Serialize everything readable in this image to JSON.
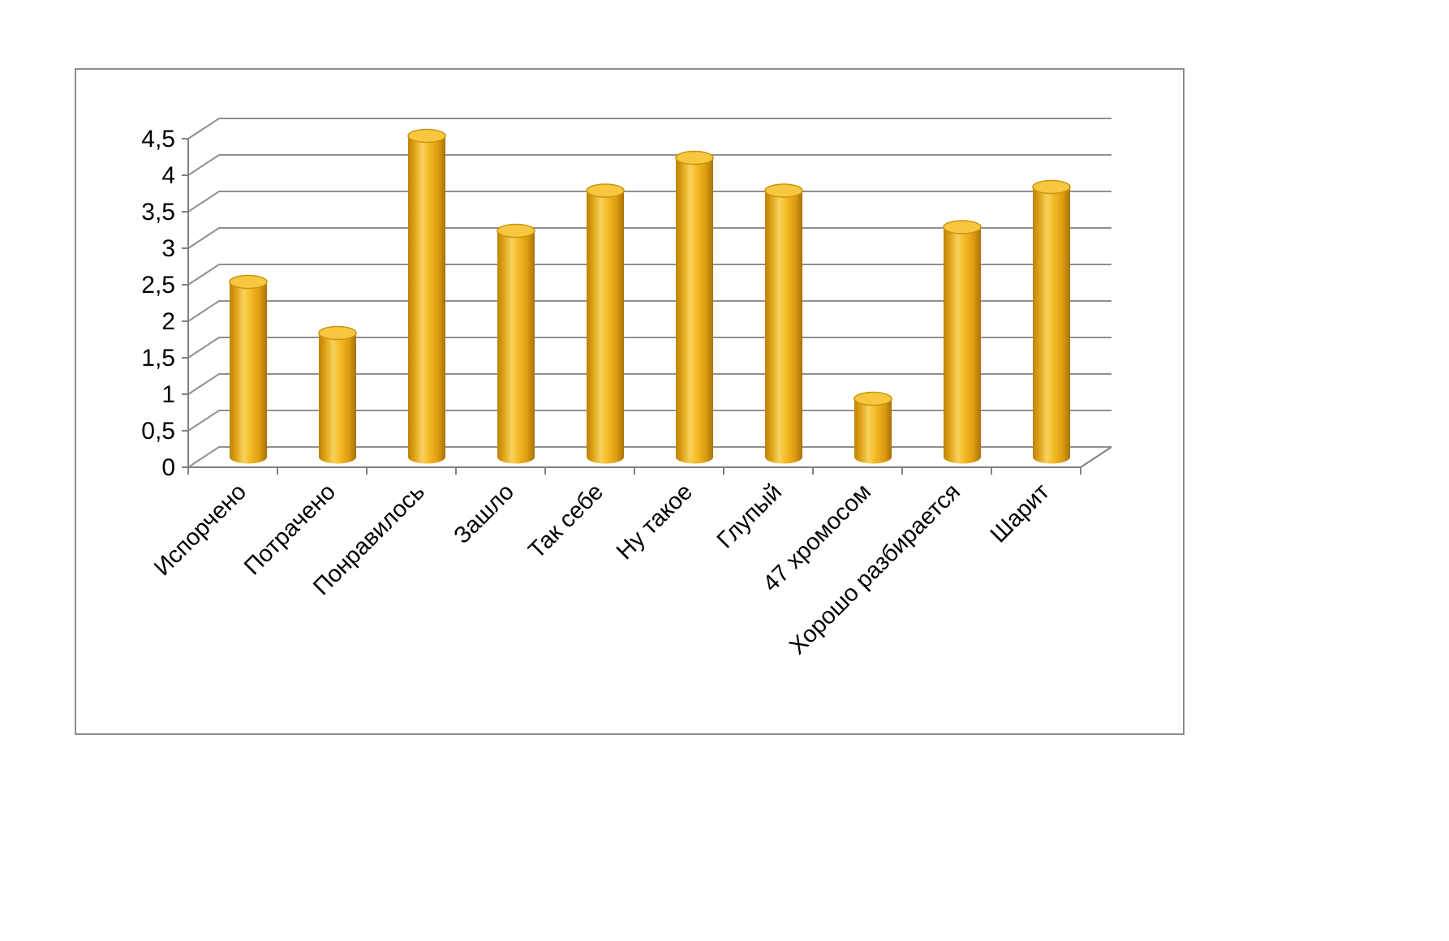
{
  "chart": {
    "frame_border_color": "#8c8c8c",
    "background": "#ffffff"
  },
  "chart_data": {
    "type": "bar",
    "subtype": "3d-cylinder",
    "title": "",
    "xlabel": "",
    "ylabel": "",
    "legend": "none",
    "grid": true,
    "categories": [
      "Испорчено",
      "Потрачено",
      "Понравилось",
      "Зашло",
      "Так себе",
      "Ну такое",
      "Глупый",
      "47 хромосом",
      "Хорошо разбирается",
      "Шарит"
    ],
    "values": [
      2.4,
      1.7,
      4.4,
      3.1,
      3.65,
      4.1,
      3.65,
      0.8,
      3.15,
      3.7
    ],
    "ylim": [
      0,
      4.5
    ],
    "ytick_step": 0.5,
    "ytick_labels": [
      "0",
      "0,5",
      "1",
      "1,5",
      "2",
      "2,5",
      "3",
      "3,5",
      "4",
      "4,5"
    ],
    "colors": {
      "bar_body_edge_dark": "#a87208",
      "bar_body_dark": "#de9c10",
      "bar_body_mid": "#f4bc29",
      "bar_body_highlight": "#f8d15f",
      "bar_body_shadow_left": "#be8208",
      "bar_top_fill": "#f7c83f",
      "bar_top_stroke": "#c9930f",
      "gridline": "#909090",
      "axis": "#808080",
      "label_text": "#000000"
    }
  }
}
